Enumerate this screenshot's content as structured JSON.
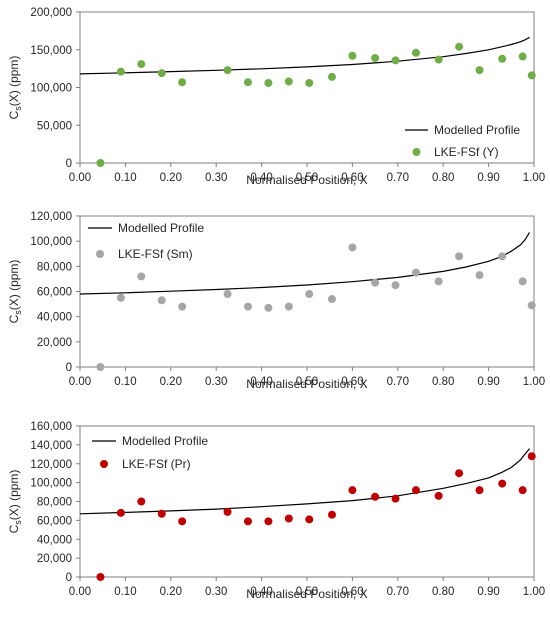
{
  "chart_data": [
    {
      "type": "scatter",
      "xlabel": "Normalised Position, X",
      "ylabel": {
        "main": "C",
        "sub": "s",
        "rest": "(X) (ppm)"
      },
      "xlim": [
        0,
        1
      ],
      "ylim": [
        0,
        200000
      ],
      "xticks": [
        0.0,
        0.1,
        0.2,
        0.3,
        0.4,
        0.5,
        0.6,
        0.7,
        0.8,
        0.9,
        1.0
      ],
      "xtick_labels": [
        "0.00",
        "0.10",
        "0.20",
        "0.30",
        "0.40",
        "0.50",
        "0.60",
        "0.70",
        "0.80",
        "0.90",
        "1.00"
      ],
      "yticks": [
        0,
        50000,
        100000,
        150000,
        200000
      ],
      "ytick_labels": [
        "0",
        "50,000",
        "100,000",
        "150,000",
        "200,000"
      ],
      "grid": false,
      "legend_position": "bottom-right",
      "series": [
        {
          "name": "Modelled Profile",
          "kind": "line",
          "color": "#000000",
          "x": [
            0,
            0.1,
            0.2,
            0.3,
            0.4,
            0.5,
            0.6,
            0.7,
            0.8,
            0.85,
            0.9,
            0.93,
            0.95,
            0.97,
            0.98,
            0.99
          ],
          "y": [
            118000,
            119500,
            121000,
            122800,
            124800,
            127300,
            130500,
            134800,
            140800,
            145000,
            150000,
            154000,
            157000,
            160500,
            163000,
            166500
          ]
        },
        {
          "name": "LKE-FSf (Y)",
          "kind": "points",
          "color": "#70ad47",
          "x": [
            0.045,
            0.09,
            0.135,
            0.18,
            0.225,
            0.325,
            0.37,
            0.415,
            0.46,
            0.505,
            0.555,
            0.6,
            0.65,
            0.695,
            0.74,
            0.79,
            0.835,
            0.88,
            0.93,
            0.975,
            0.995
          ],
          "y": [
            0,
            121000,
            131000,
            119000,
            107000,
            123000,
            107000,
            106000,
            108000,
            106000,
            114000,
            142000,
            139000,
            136000,
            146000,
            137000,
            154000,
            123000,
            138000,
            141000,
            116000
          ]
        }
      ]
    },
    {
      "type": "scatter",
      "xlabel": "Normalised Position, X",
      "ylabel": {
        "main": "C",
        "sub": "s",
        "rest": "(X) (ppm)"
      },
      "xlim": [
        0,
        1
      ],
      "ylim": [
        0,
        120000
      ],
      "xticks": [
        0.0,
        0.1,
        0.2,
        0.3,
        0.4,
        0.5,
        0.6,
        0.7,
        0.8,
        0.9,
        1.0
      ],
      "xtick_labels": [
        "0.00",
        "0.10",
        "0.20",
        "0.30",
        "0.40",
        "0.50",
        "0.60",
        "0.70",
        "0.80",
        "0.90",
        "1.00"
      ],
      "yticks": [
        0,
        20000,
        40000,
        60000,
        80000,
        100000,
        120000
      ],
      "ytick_labels": [
        "0",
        "20,000",
        "40,000",
        "60,000",
        "80,000",
        "100,000",
        "120,000"
      ],
      "grid": false,
      "legend_position": "top-left",
      "series": [
        {
          "name": "Modelled Profile",
          "kind": "line",
          "color": "#000000",
          "x": [
            0,
            0.1,
            0.2,
            0.3,
            0.4,
            0.5,
            0.6,
            0.7,
            0.8,
            0.85,
            0.9,
            0.93,
            0.95,
            0.97,
            0.98,
            0.99
          ],
          "y": [
            58000,
            59000,
            60200,
            61600,
            63200,
            65200,
            67800,
            71200,
            76000,
            79500,
            84000,
            88000,
            92000,
            97000,
            101000,
            107000
          ]
        },
        {
          "name": "LKE-FSf (Sm)",
          "kind": "points",
          "color": "#a6a6a6",
          "x": [
            0.045,
            0.09,
            0.135,
            0.18,
            0.225,
            0.325,
            0.37,
            0.415,
            0.46,
            0.505,
            0.555,
            0.6,
            0.65,
            0.695,
            0.74,
            0.79,
            0.835,
            0.88,
            0.93,
            0.975,
            0.995
          ],
          "y": [
            0,
            55000,
            72000,
            53000,
            48000,
            58000,
            48000,
            47000,
            48000,
            58000,
            54000,
            95000,
            67000,
            65000,
            75000,
            68000,
            88000,
            73000,
            88000,
            68000,
            49000
          ]
        }
      ]
    },
    {
      "type": "scatter",
      "xlabel": "Normalised Position, X",
      "ylabel": {
        "main": "C",
        "sub": "s",
        "rest": "(X) (ppm)"
      },
      "xlim": [
        0,
        1
      ],
      "ylim": [
        0,
        160000
      ],
      "xticks": [
        0.0,
        0.1,
        0.2,
        0.3,
        0.4,
        0.5,
        0.6,
        0.7,
        0.8,
        0.9,
        1.0
      ],
      "xtick_labels": [
        "0.00",
        "0.10",
        "0.20",
        "0.30",
        "0.40",
        "0.50",
        "0.60",
        "0.70",
        "0.80",
        "0.90",
        "1.00"
      ],
      "yticks": [
        0,
        20000,
        40000,
        60000,
        80000,
        100000,
        120000,
        140000,
        160000
      ],
      "ytick_labels": [
        "0",
        "20,000",
        "40,000",
        "60,000",
        "80,000",
        "100,000",
        "120,000",
        "140,000",
        "160,000"
      ],
      "grid": false,
      "legend_position": "top-left",
      "series": [
        {
          "name": "Modelled Profile",
          "kind": "line",
          "color": "#000000",
          "x": [
            0,
            0.1,
            0.2,
            0.3,
            0.4,
            0.5,
            0.6,
            0.7,
            0.8,
            0.85,
            0.9,
            0.93,
            0.95,
            0.97,
            0.98,
            0.99
          ],
          "y": [
            67000,
            68500,
            70000,
            72000,
            74500,
            77500,
            81000,
            86000,
            94000,
            99000,
            105000,
            111000,
            116000,
            124000,
            130000,
            136000
          ]
        },
        {
          "name": "LKE-FSf (Pr)",
          "kind": "points",
          "color": "#c00000",
          "x": [
            0.045,
            0.09,
            0.135,
            0.18,
            0.225,
            0.325,
            0.37,
            0.415,
            0.46,
            0.505,
            0.555,
            0.6,
            0.65,
            0.695,
            0.74,
            0.79,
            0.835,
            0.88,
            0.93,
            0.975,
            0.995
          ],
          "y": [
            0,
            68000,
            80000,
            67000,
            59000,
            69000,
            59000,
            59000,
            62000,
            61000,
            66000,
            92000,
            85000,
            83000,
            92000,
            86000,
            110000,
            92000,
            99000,
            92000,
            128000
          ]
        }
      ]
    }
  ]
}
